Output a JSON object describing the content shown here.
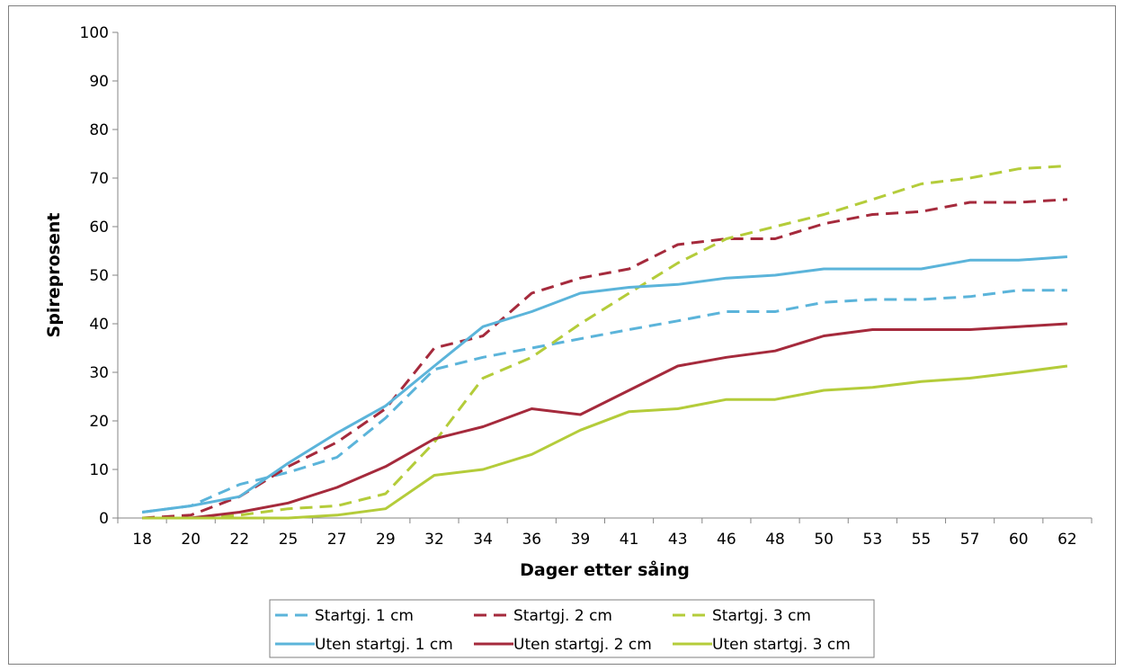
{
  "chart_data": {
    "type": "line",
    "xlabel": "Dager etter såing",
    "ylabel": "Spireprosent",
    "ylim": [
      0,
      100
    ],
    "yticks": [
      0,
      10,
      20,
      30,
      40,
      50,
      60,
      70,
      80,
      90,
      100
    ],
    "grid": false,
    "legend_position": "bottom",
    "categories": [
      "18",
      "20",
      "22",
      "25",
      "27",
      "29",
      "32",
      "34",
      "36",
      "39",
      "41",
      "43",
      "46",
      "48",
      "50",
      "53",
      "55",
      "57",
      "60",
      "62"
    ],
    "series": [
      {
        "name": "Startgj. 1 cm",
        "color": "#5bb4da",
        "dash": true,
        "values": [
          1.2,
          2.5,
          6.9,
          9.4,
          12.5,
          20.6,
          30.6,
          33.1,
          35.0,
          36.9,
          38.8,
          40.6,
          42.5,
          42.5,
          44.4,
          45.0,
          45.0,
          45.6,
          46.9,
          46.9
        ]
      },
      {
        "name": "Startgj. 2 cm",
        "color": "#a52a3c",
        "dash": true,
        "values": [
          0.0,
          0.6,
          4.4,
          10.6,
          15.6,
          22.5,
          35.0,
          37.5,
          46.3,
          49.4,
          51.3,
          56.3,
          57.5,
          57.5,
          60.6,
          62.5,
          63.1,
          65.0,
          65.0,
          65.6
        ]
      },
      {
        "name": "Startgj. 3 cm",
        "color": "#b4cc3a",
        "dash": true,
        "values": [
          0.0,
          0.0,
          0.6,
          1.9,
          2.5,
          5.0,
          15.6,
          28.8,
          33.1,
          40.0,
          46.3,
          52.5,
          57.5,
          60.0,
          62.5,
          65.6,
          68.8,
          70.0,
          71.9,
          72.5
        ]
      },
      {
        "name": "Uten startgj. 1 cm",
        "color": "#5bb4da",
        "dash": false,
        "values": [
          1.2,
          2.5,
          4.4,
          11.3,
          17.5,
          23.1,
          31.3,
          39.4,
          42.5,
          46.3,
          47.5,
          48.1,
          49.4,
          50.0,
          51.3,
          51.3,
          51.3,
          53.1,
          53.1,
          53.8
        ]
      },
      {
        "name": "Uten startgj. 2 cm",
        "color": "#a52a3c",
        "dash": false,
        "values": [
          0.0,
          0.0,
          1.2,
          3.1,
          6.3,
          10.6,
          16.3,
          18.8,
          22.5,
          21.3,
          26.3,
          31.3,
          33.1,
          34.4,
          37.5,
          38.8,
          38.8,
          38.8,
          39.4,
          40.0
        ]
      },
      {
        "name": "Uten startgj. 3 cm",
        "color": "#b4cc3a",
        "dash": false,
        "values": [
          0.0,
          0.0,
          0.0,
          0.0,
          0.6,
          1.9,
          8.8,
          10.0,
          13.1,
          18.1,
          21.9,
          22.5,
          24.4,
          24.4,
          26.3,
          26.9,
          28.1,
          28.8,
          30.0,
          31.3
        ]
      }
    ]
  }
}
